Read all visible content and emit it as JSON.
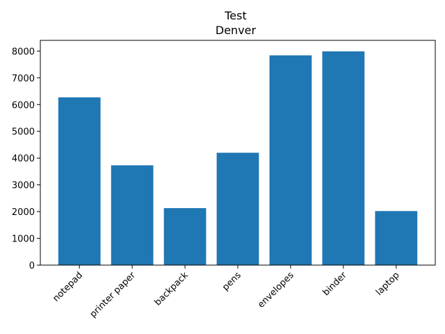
{
  "chart_data": {
    "type": "bar",
    "title": "Test",
    "subtitle": "Denver",
    "xlabel": "",
    "ylabel": "",
    "categories": [
      "notepad",
      "printer paper",
      "backpack",
      "pens",
      "envelopes",
      "binder",
      "laptop"
    ],
    "values": [
      6270,
      3730,
      2130,
      4200,
      7840,
      7990,
      2020
    ],
    "ylim": [
      0,
      8400
    ],
    "yticks": [
      0,
      1000,
      2000,
      3000,
      4000,
      5000,
      6000,
      7000,
      8000
    ],
    "bar_color": "#1f77b4",
    "grid": false,
    "legend": "none"
  }
}
